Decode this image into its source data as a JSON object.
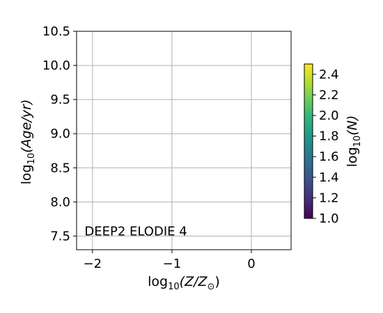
{
  "chart_data": {
    "type": "heatmap",
    "annotation": "DEEP2 ELODIE 4",
    "x": {
      "label_prefix": "log",
      "label_sub": "10",
      "label_text": "(Z/Z",
      "label_sun": "⊙",
      "label_close": ")",
      "range": [
        -2.2,
        0.5
      ],
      "ticks": [
        -2,
        -1,
        0
      ],
      "tick_labels": [
        "−2",
        "−1",
        "0"
      ],
      "grid": true
    },
    "y": {
      "label_prefix": "log",
      "label_sub": "10",
      "label_text": "(Age/yr)",
      "range": [
        7.3,
        10.5
      ],
      "ticks": [
        7.5,
        8.0,
        8.5,
        9.0,
        9.5,
        10.0,
        10.5
      ],
      "tick_labels": [
        "7.5",
        "8.0",
        "8.5",
        "9.0",
        "9.5",
        "10.0",
        "10.5"
      ],
      "grid": true
    },
    "colorbar": {
      "label_prefix": "log",
      "label_sub": "10",
      "label_text": "(N)",
      "range": [
        1.0,
        2.5
      ],
      "ticks": [
        1.0,
        1.2,
        1.4,
        1.6,
        1.8,
        2.0,
        2.2,
        2.4
      ],
      "tick_labels": [
        "1.0",
        "1.2",
        "1.4",
        "1.6",
        "1.8",
        "2.0",
        "2.2",
        "2.4"
      ],
      "colormap": [
        "#440154",
        "#482878",
        "#3e4989",
        "#31688e",
        "#26828e",
        "#1f9e89",
        "#35b779",
        "#6ece58",
        "#b5de2b",
        "#fde725"
      ]
    },
    "values": []
  }
}
